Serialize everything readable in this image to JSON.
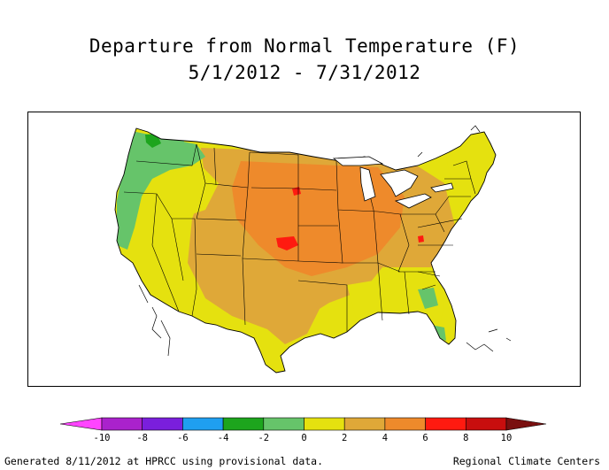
{
  "title": {
    "line1": "Departure from Normal Temperature (F)",
    "line2": "5/1/2012 - 7/31/2012"
  },
  "map": {
    "region": "Contiguous United States",
    "description_colors": {
      "background": "#ffffff",
      "state_lines": "#000000"
    }
  },
  "legend": {
    "bins": [
      {
        "from": -12,
        "to": -10,
        "color": "#ff44ff"
      },
      {
        "from": -10,
        "to": -8,
        "color": "#aa22cc"
      },
      {
        "from": -8,
        "to": -6,
        "color": "#7a1fdc"
      },
      {
        "from": -6,
        "to": -4,
        "color": "#1f9ff0"
      },
      {
        "from": -4,
        "to": -2,
        "color": "#1da51d"
      },
      {
        "from": -2,
        "to": 0,
        "color": "#66c46a"
      },
      {
        "from": 0,
        "to": 2,
        "color": "#e5e10f"
      },
      {
        "from": 2,
        "to": 4,
        "color": "#dfa838"
      },
      {
        "from": 4,
        "to": 6,
        "color": "#ee8a2b"
      },
      {
        "from": 6,
        "to": 8,
        "color": "#ff1a10"
      },
      {
        "from": 8,
        "to": 10,
        "color": "#c80e0e"
      },
      {
        "from": 10,
        "to": 12,
        "color": "#7a1010"
      }
    ],
    "tick_labels": [
      "-10",
      "-8",
      "-6",
      "-4",
      "-2",
      "0",
      "2",
      "4",
      "6",
      "8",
      "10"
    ]
  },
  "footer": {
    "left": "Generated 8/11/2012 at HPRCC using provisional data.",
    "right": "Regional Climate Centers"
  }
}
